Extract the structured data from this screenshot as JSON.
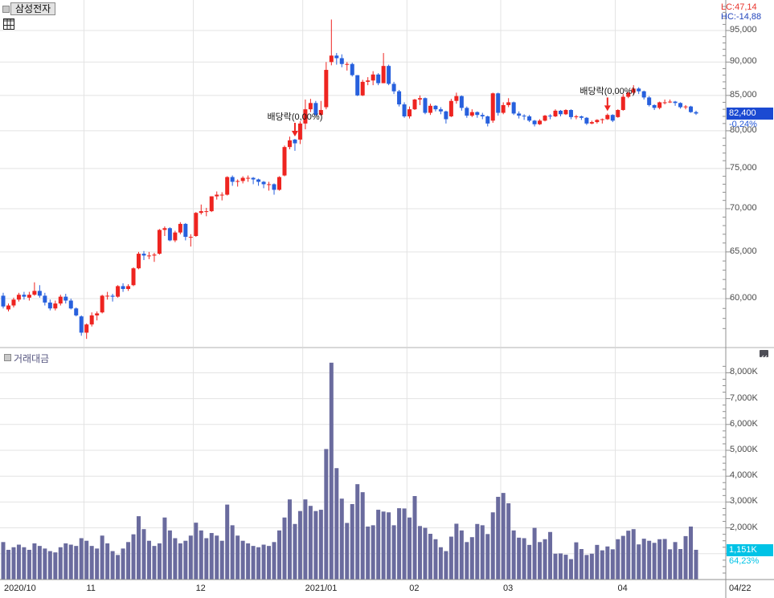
{
  "header": {
    "title": "삼성전자",
    "lc": "LC:47,14",
    "hc": "HC:-14,88"
  },
  "price_tag": {
    "label": "82,400",
    "value": 82400,
    "pct": "-0,24%"
  },
  "volume_tag": {
    "label": "1,151K",
    "value": 1151,
    "pct": "64,23%"
  },
  "volume_pane": {
    "title": "거래대금"
  },
  "x_axis": {
    "labels": [
      "2020/10",
      "11",
      "12",
      "2021/01",
      "02",
      "03",
      "04"
    ],
    "end_label": "04/22"
  },
  "annotations": [
    {
      "text": "배당락(0,00%)",
      "day": 56
    },
    {
      "text": "배당락(0,00%)",
      "day": 116
    }
  ],
  "colors": {
    "up": "#ee2420",
    "down": "#2760dd",
    "volume_bar": "#6a6b9e",
    "grid": "#e3e3e3",
    "axis": "#909090",
    "divider": "#b0b0b0",
    "price_tag_bg": "#1b4ad2",
    "volume_tag_bg": "#00c3e6",
    "price_pct_text": "#2256d9",
    "volume_pct_text": "#00c3e6",
    "lc_text": "#e8332b",
    "hc_text": "#2244bb"
  },
  "chart_data": [
    {
      "type": "candlestick",
      "title": "삼성전자",
      "scale": "log",
      "ylim": [
        56000,
        97000
      ],
      "up_means": "close>=open (red)",
      "months": [
        {
          "label": "2020/10",
          "days": 16
        },
        {
          "label": "11",
          "days": 21
        },
        {
          "label": "12",
          "days": 21
        },
        {
          "label": "2021/01",
          "days": 20
        },
        {
          "label": "02",
          "days": 18
        },
        {
          "label": "03",
          "days": 22
        },
        {
          "label": "04",
          "days": 16
        }
      ],
      "y_ticks": [
        {
          "v": 95000,
          "label": "95,000"
        },
        {
          "v": 90000,
          "label": "90,000"
        },
        {
          "v": 85000,
          "label": "85,000"
        },
        {
          "v": 80000,
          "label": "80,000"
        },
        {
          "v": 75000,
          "label": "75,000"
        },
        {
          "v": 70000,
          "label": "70,000"
        },
        {
          "v": 65000,
          "label": "65,000"
        },
        {
          "v": 60000,
          "label": "60,000"
        }
      ],
      "ohlc": [
        [
          60300,
          60600,
          59000,
          59200
        ],
        [
          58900,
          59500,
          58700,
          59300
        ],
        [
          59300,
          60100,
          59100,
          59900
        ],
        [
          59900,
          60600,
          59700,
          60400
        ],
        [
          60400,
          60700,
          59900,
          60200
        ],
        [
          60100,
          60700,
          59800,
          60400
        ],
        [
          60400,
          61700,
          60300,
          60800
        ],
        [
          60800,
          61400,
          60100,
          60300
        ],
        [
          60300,
          60600,
          59300,
          59600
        ],
        [
          59600,
          59900,
          58800,
          59000
        ],
        [
          59000,
          59800,
          58800,
          59500
        ],
        [
          59500,
          60400,
          59300,
          60200
        ],
        [
          60200,
          60500,
          59500,
          59800
        ],
        [
          59800,
          60000,
          58900,
          59000
        ],
        [
          59000,
          59100,
          58200,
          58300
        ],
        [
          58200,
          58300,
          56300,
          56600
        ],
        [
          56600,
          57500,
          56000,
          57400
        ],
        [
          57400,
          58600,
          57200,
          58300
        ],
        [
          58300,
          58700,
          57800,
          58500
        ],
        [
          58600,
          60400,
          58500,
          60300
        ],
        [
          60300,
          60700,
          59900,
          60300
        ],
        [
          60300,
          60500,
          59700,
          60200
        ],
        [
          60200,
          61400,
          60100,
          61300
        ],
        [
          61300,
          61600,
          60700,
          61000
        ],
        [
          61000,
          61500,
          60800,
          61300
        ],
        [
          61400,
          63300,
          61300,
          63200
        ],
        [
          63200,
          65000,
          63100,
          64800
        ],
        [
          64800,
          65100,
          64100,
          64600
        ],
        [
          64600,
          65000,
          64200,
          64600
        ],
        [
          64600,
          64900,
          63900,
          64700
        ],
        [
          64800,
          67600,
          64700,
          67500
        ],
        [
          67500,
          67900,
          66800,
          67700
        ],
        [
          67700,
          67800,
          66200,
          66300
        ],
        [
          66300,
          67400,
          66100,
          67200
        ],
        [
          67200,
          68400,
          67000,
          68200
        ],
        [
          68200,
          68300,
          66300,
          66700
        ],
        [
          66700,
          67000,
          65600,
          66700
        ],
        [
          66800,
          69600,
          66700,
          69500
        ],
        [
          69500,
          70500,
          69300,
          69700
        ],
        [
          69700,
          70100,
          69100,
          69700
        ],
        [
          69700,
          71500,
          69600,
          71500
        ],
        [
          71500,
          72100,
          71100,
          71700
        ],
        [
          71700,
          72000,
          71000,
          71700
        ],
        [
          71700,
          74000,
          71600,
          73900
        ],
        [
          73900,
          74100,
          72800,
          73300
        ],
        [
          73300,
          73600,
          72700,
          73400
        ],
        [
          73400,
          74000,
          73100,
          73800
        ],
        [
          73800,
          74100,
          73300,
          73800
        ],
        [
          73800,
          73900,
          73000,
          73600
        ],
        [
          73600,
          73700,
          72800,
          73300
        ],
        [
          73300,
          73400,
          72500,
          73000
        ],
        [
          73000,
          73300,
          72200,
          73000
        ],
        [
          73000,
          73100,
          71700,
          72300
        ],
        [
          72300,
          74000,
          72200,
          73900
        ],
        [
          74100,
          78000,
          74000,
          77800
        ],
        [
          77800,
          79200,
          77500,
          78700
        ],
        [
          78800,
          78900,
          77300,
          78300
        ],
        [
          78800,
          81300,
          78200,
          81000
        ],
        [
          81000,
          84400,
          80200,
          83000
        ],
        [
          83000,
          84500,
          82600,
          83900
        ],
        [
          83900,
          84200,
          82100,
          82200
        ],
        [
          82200,
          84200,
          82100,
          82900
        ],
        [
          83300,
          90000,
          83000,
          88800
        ],
        [
          90000,
          96800,
          89500,
          91000
        ],
        [
          91000,
          91400,
          89600,
          90600
        ],
        [
          90600,
          91200,
          89200,
          89700
        ],
        [
          89700,
          90000,
          88700,
          89700
        ],
        [
          89700,
          89900,
          87800,
          88000
        ],
        [
          88000,
          88000,
          84900,
          85000
        ],
        [
          85000,
          87300,
          84900,
          87000
        ],
        [
          87000,
          87700,
          86500,
          87200
        ],
        [
          87200,
          88600,
          86500,
          88100
        ],
        [
          88100,
          88300,
          86500,
          86800
        ],
        [
          86800,
          91400,
          86800,
          89400
        ],
        [
          89400,
          89600,
          86500,
          86700
        ],
        [
          86700,
          87000,
          85200,
          85600
        ],
        [
          85600,
          85800,
          83400,
          83700
        ],
        [
          83700,
          84000,
          81800,
          82000
        ],
        [
          82000,
          83400,
          81700,
          83000
        ],
        [
          83000,
          84500,
          82900,
          84400
        ],
        [
          84400,
          85000,
          83600,
          84600
        ],
        [
          84600,
          84700,
          82300,
          82500
        ],
        [
          82500,
          83800,
          82200,
          83500
        ],
        [
          83500,
          83600,
          82700,
          83000
        ],
        [
          83000,
          83300,
          82300,
          82700
        ],
        [
          82700,
          82800,
          81000,
          81600
        ],
        [
          82000,
          84500,
          81900,
          84200
        ],
        [
          84200,
          85400,
          83800,
          84900
        ],
        [
          84900,
          85000,
          82800,
          83200
        ],
        [
          83200,
          83400,
          81800,
          82100
        ],
        [
          82100,
          83000,
          81900,
          82600
        ],
        [
          82600,
          82700,
          81800,
          82200
        ],
        [
          82200,
          82500,
          81600,
          82000
        ],
        [
          82000,
          82100,
          80600,
          81000
        ],
        [
          81400,
          85400,
          81100,
          85300
        ],
        [
          85300,
          85400,
          82100,
          82500
        ],
        [
          82500,
          84000,
          82300,
          83600
        ],
        [
          83600,
          84600,
          83300,
          84000
        ],
        [
          84000,
          84100,
          82200,
          82400
        ],
        [
          82400,
          82700,
          81700,
          82100
        ],
        [
          82100,
          82300,
          81500,
          82000
        ],
        [
          82000,
          82200,
          81200,
          81400
        ],
        [
          81400,
          81500,
          80600,
          80900
        ],
        [
          80900,
          81600,
          80800,
          81400
        ],
        [
          81400,
          82200,
          81300,
          82100
        ],
        [
          82100,
          82300,
          81600,
          82000
        ],
        [
          82000,
          83000,
          81900,
          82800
        ],
        [
          82800,
          82900,
          82000,
          82300
        ],
        [
          82300,
          83000,
          82200,
          82900
        ],
        [
          82900,
          83000,
          81600,
          81900
        ],
        [
          81900,
          82200,
          81600,
          82000
        ],
        [
          82000,
          82100,
          81500,
          81800
        ],
        [
          81800,
          81900,
          80800,
          81000
        ],
        [
          81000,
          81400,
          80900,
          81200
        ],
        [
          81200,
          81600,
          81000,
          81500
        ],
        [
          81500,
          81700,
          81000,
          81600
        ],
        [
          81600,
          82400,
          81500,
          82200
        ],
        [
          82200,
          82300,
          81200,
          81400
        ],
        [
          81900,
          83000,
          81800,
          82900
        ],
        [
          82900,
          85200,
          82800,
          84800
        ],
        [
          84800,
          85500,
          84600,
          85400
        ],
        [
          85400,
          86500,
          85100,
          86000
        ],
        [
          86000,
          86200,
          85200,
          85600
        ],
        [
          85600,
          85700,
          84400,
          84700
        ],
        [
          84700,
          84900,
          83400,
          83600
        ],
        [
          83600,
          83700,
          82900,
          83200
        ],
        [
          83200,
          84100,
          83000,
          84000
        ],
        [
          84000,
          84400,
          83700,
          84000
        ],
        [
          84000,
          84400,
          83900,
          84100
        ],
        [
          84100,
          84200,
          83500,
          83900
        ],
        [
          83900,
          84000,
          83100,
          83300
        ],
        [
          83300,
          83600,
          83000,
          83400
        ],
        [
          83400,
          83500,
          82500,
          82600
        ],
        [
          82600,
          82800,
          82200,
          82400
        ]
      ]
    },
    {
      "type": "bar",
      "title": "거래대금",
      "unit": "K",
      "ylim": [
        0,
        8500
      ],
      "y_ticks": [
        {
          "v": 8000,
          "label": "8,000K"
        },
        {
          "v": 7000,
          "label": "7,000K"
        },
        {
          "v": 6000,
          "label": "6,000K"
        },
        {
          "v": 5000,
          "label": "5,000K"
        },
        {
          "v": 4000,
          "label": "4,000K"
        },
        {
          "v": 3000,
          "label": "3,000K"
        },
        {
          "v": 2000,
          "label": "2,000K"
        }
      ],
      "values": [
        1450,
        1150,
        1250,
        1350,
        1250,
        1150,
        1400,
        1300,
        1200,
        1100,
        1050,
        1250,
        1400,
        1350,
        1300,
        1600,
        1500,
        1300,
        1200,
        1700,
        1400,
        1100,
        950,
        1200,
        1450,
        1750,
        2450,
        1950,
        1500,
        1300,
        1400,
        2400,
        1900,
        1600,
        1400,
        1500,
        1700,
        2200,
        1900,
        1600,
        1800,
        1700,
        1500,
        2900,
        2100,
        1700,
        1500,
        1400,
        1300,
        1250,
        1350,
        1300,
        1450,
        1900,
        2400,
        3100,
        2150,
        2650,
        3100,
        2850,
        2650,
        2700,
        5050,
        8390,
        4310,
        3130,
        2190,
        2920,
        3690,
        3380,
        2050,
        2100,
        2700,
        2630,
        2600,
        2100,
        2760,
        2750,
        2400,
        3230,
        2070,
        2000,
        1770,
        1560,
        1250,
        1100,
        1660,
        2160,
        1900,
        1450,
        1640,
        2150,
        2100,
        1760,
        2600,
        3200,
        3350,
        2950,
        1900,
        1620,
        1600,
        1340,
        2000,
        1450,
        1560,
        1840,
        1000,
        1010,
        960,
        790,
        1440,
        1180,
        950,
        1000,
        1340,
        1130,
        1280,
        1170,
        1560,
        1690,
        1890,
        1950,
        1360,
        1580,
        1500,
        1420,
        1560,
        1570,
        1170,
        1450,
        1180,
        1680,
        2050,
        1151
      ]
    }
  ]
}
